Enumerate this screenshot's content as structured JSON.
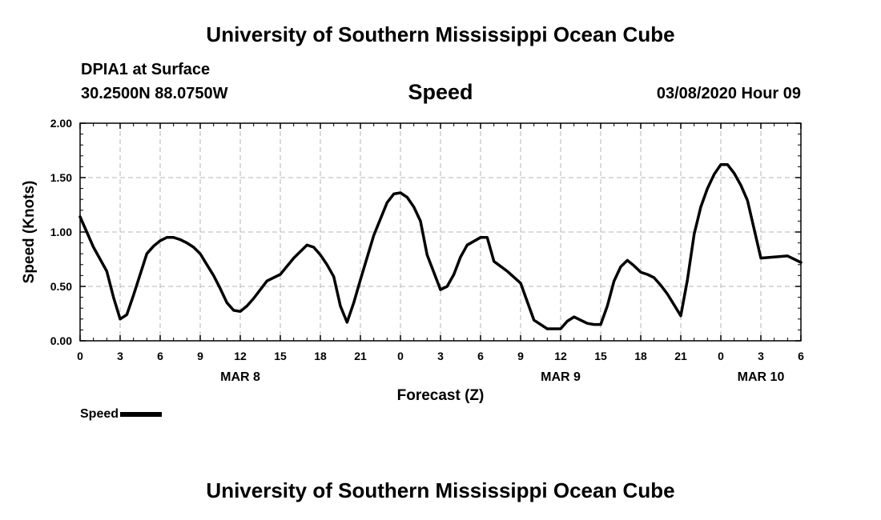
{
  "header": {
    "title": "University of Southern Mississippi Ocean Cube",
    "station": "DPIA1 at Surface",
    "location": "30.2500N 88.0750W",
    "plot_title": "Speed",
    "datetime": "03/08/2020 Hour 09"
  },
  "footer": {
    "title": "University of Southern Mississippi Ocean Cube"
  },
  "legend": {
    "label": "Speed",
    "color": "#000000"
  },
  "chart_data": {
    "type": "line",
    "title": "Speed",
    "xlabel": "Forecast (Z)",
    "ylabel": "Speed (Knots)",
    "x_unit": "hours since 00Z MAR 8",
    "xlim": [
      0,
      54
    ],
    "ylim": [
      0,
      2
    ],
    "y_ticks": [
      "0.00",
      "0.50",
      "1.00",
      "1.50",
      "2.00"
    ],
    "x_tick_labels": [
      "0",
      "3",
      "6",
      "9",
      "12",
      "15",
      "18",
      "21",
      "0",
      "3",
      "6",
      "9",
      "12",
      "15",
      "18",
      "21",
      "0",
      "3",
      "6"
    ],
    "date_labels": [
      {
        "label": "MAR 8",
        "x": 12
      },
      {
        "label": "MAR 9",
        "x": 36
      },
      {
        "label": "MAR 10",
        "x": 51
      }
    ],
    "grid": true,
    "line_color": "#000000",
    "series": [
      {
        "name": "Speed",
        "x": [
          0,
          1,
          2,
          2.5,
          3,
          3.5,
          4,
          5,
          5.5,
          6,
          6.5,
          7,
          7.5,
          8,
          8.5,
          9,
          9.5,
          10,
          10.5,
          11,
          11.5,
          12,
          12.5,
          13,
          14,
          15,
          16,
          17,
          17.5,
          18,
          18.5,
          19,
          19.5,
          20,
          20.5,
          21,
          22,
          23,
          23.5,
          24,
          24.5,
          25,
          25.5,
          26,
          27,
          27.5,
          28,
          28.5,
          29,
          30,
          30.5,
          31,
          32,
          33,
          34,
          35,
          36,
          36.5,
          37,
          37.5,
          38,
          38.5,
          39,
          39.5,
          40,
          40.5,
          41,
          41.5,
          42,
          42.5,
          43,
          43.5,
          44,
          45,
          45.5,
          46,
          46.5,
          47,
          47.5,
          48,
          48.5,
          49,
          49.5,
          50,
          51,
          52,
          53,
          54
        ],
        "values": [
          1.14,
          0.86,
          0.64,
          0.4,
          0.2,
          0.24,
          0.42,
          0.8,
          0.87,
          0.92,
          0.95,
          0.95,
          0.93,
          0.9,
          0.86,
          0.8,
          0.7,
          0.6,
          0.48,
          0.35,
          0.28,
          0.27,
          0.32,
          0.39,
          0.55,
          0.61,
          0.76,
          0.88,
          0.86,
          0.79,
          0.7,
          0.59,
          0.32,
          0.17,
          0.35,
          0.56,
          0.97,
          1.27,
          1.35,
          1.36,
          1.32,
          1.23,
          1.1,
          0.79,
          0.47,
          0.5,
          0.61,
          0.77,
          0.88,
          0.95,
          0.95,
          0.73,
          0.64,
          0.53,
          0.19,
          0.11,
          0.11,
          0.18,
          0.22,
          0.19,
          0.16,
          0.15,
          0.15,
          0.32,
          0.55,
          0.68,
          0.74,
          0.69,
          0.63,
          0.61,
          0.58,
          0.51,
          0.43,
          0.23,
          0.56,
          0.98,
          1.23,
          1.4,
          1.53,
          1.62,
          1.62,
          1.54,
          1.43,
          1.29,
          0.76,
          0.77,
          0.78,
          0.72
        ]
      }
    ]
  }
}
